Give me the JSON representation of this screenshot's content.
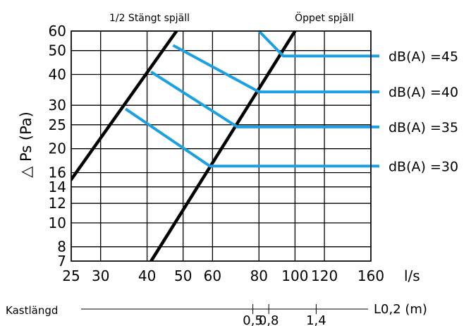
{
  "chart_data": {
    "type": "line",
    "title": "",
    "xlabel": "l/s",
    "ylabel": "△ Ps (Pa)",
    "x_scale": "log",
    "y_scale": "log",
    "xlim": [
      25,
      160
    ],
    "ylim": [
      7,
      60
    ],
    "grid": true,
    "x_ticks": [
      25,
      30,
      40,
      50,
      60,
      80,
      100,
      120,
      160
    ],
    "x_tick_labels": [
      "25",
      "30",
      "40",
      "50",
      "60",
      "80",
      "100",
      "120",
      "160"
    ],
    "y_ticks": [
      7,
      8,
      10,
      12,
      14,
      16,
      20,
      25,
      30,
      40,
      50,
      60
    ],
    "y_tick_labels": [
      "7",
      "8",
      "10",
      "12",
      "14",
      "16",
      "20",
      "25",
      "30",
      "40",
      "50",
      "60"
    ],
    "curves": [
      {
        "name": "1/2 Stängt spjäll",
        "color": "#000000",
        "points": [
          [
            25,
            15
          ],
          [
            48,
            60
          ]
        ]
      },
      {
        "name": "Öppet spjäll",
        "color": "#000000",
        "points": [
          [
            41,
            7
          ],
          [
            100,
            60
          ]
        ]
      }
    ],
    "db_lines": [
      {
        "label": "dB(A) =45",
        "color": "#1ba1e2",
        "points": [
          [
            80,
            60
          ],
          [
            93,
            47.5
          ],
          [
            160,
            47.5
          ]
        ]
      },
      {
        "label": "dB(A) =40",
        "color": "#1ba1e2",
        "points": [
          [
            47,
            52.5
          ],
          [
            80,
            34
          ],
          [
            160,
            34
          ]
        ]
      },
      {
        "label": "dB(A) =35",
        "color": "#1ba1e2",
        "points": [
          [
            41,
            41
          ],
          [
            70,
            24.5
          ],
          [
            160,
            24.5
          ]
        ]
      },
      {
        "label": "dB(A) =30",
        "color": "#1ba1e2",
        "points": [
          [
            35,
            29
          ],
          [
            59,
            17
          ],
          [
            160,
            17
          ]
        ]
      }
    ],
    "kastlangd": {
      "label": "Kastlängd",
      "unit_label": "L0,2 (m)",
      "marks": [
        {
          "label": "0,5",
          "flow": 77
        },
        {
          "label": "0,8",
          "flow": 85
        },
        {
          "label": "1,4",
          "flow": 114
        }
      ]
    }
  }
}
